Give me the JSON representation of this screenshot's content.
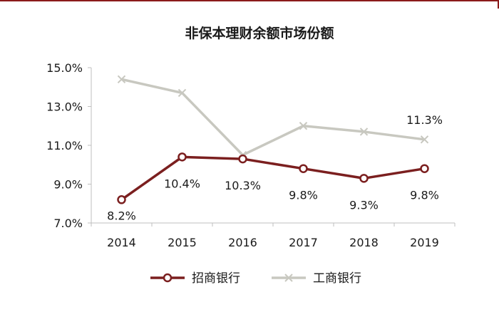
{
  "chart_data": {
    "type": "line",
    "title": "非保本理财余额市场份额",
    "xlabel": "",
    "ylabel": "",
    "categories": [
      "2014",
      "2015",
      "2016",
      "2017",
      "2018",
      "2019"
    ],
    "y_ticks": [
      "7.0%",
      "9.0%",
      "11.0%",
      "13.0%",
      "15.0%"
    ],
    "ylim": [
      7.0,
      15.0
    ],
    "grid": false,
    "legend_position": "bottom",
    "series": [
      {
        "name": "招商银行",
        "color": "#7b1f1f",
        "marker": "circle",
        "values": [
          8.2,
          10.4,
          10.3,
          9.8,
          9.3,
          9.8
        ],
        "labels": [
          "8.2%",
          "10.4%",
          "10.3%",
          "9.8%",
          "9.3%",
          "9.8%"
        ]
      },
      {
        "name": "工商银行",
        "color": "#c8c8c0",
        "marker": "x",
        "values": [
          14.4,
          13.7,
          10.5,
          12.0,
          11.7,
          11.3
        ],
        "labels": [
          "",
          "",
          "",
          "",
          "",
          "11.3%"
        ]
      }
    ]
  }
}
